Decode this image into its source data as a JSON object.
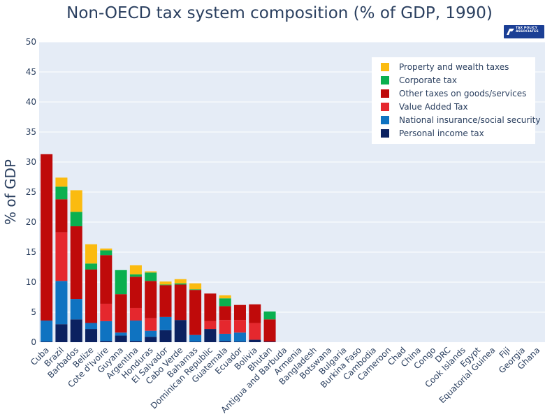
{
  "chart_data": {
    "type": "bar",
    "stacked": true,
    "title": "Non-OECD tax system composition (% of GDP, 1990)",
    "ylabel": "% of GDP",
    "xlabel": "",
    "ylim": [
      0,
      50
    ],
    "yticks": [
      0,
      5,
      10,
      15,
      20,
      25,
      30,
      35,
      40,
      45,
      50
    ],
    "grid": true,
    "legend_position": "top-right",
    "categories": [
      "Cuba",
      "Brazil",
      "Barbados",
      "Belize",
      "Cote d'Ivoire",
      "Guyana",
      "Argentina",
      "Honduras",
      "El Salvador",
      "Cabo Verde",
      "Bahamas",
      "Dominican Republic",
      "Guatemala",
      "Ecuador",
      "Bolivia",
      "Bhutan",
      "Antigua and Barbuda",
      "Armenia",
      "Bangladesh",
      "Botswana",
      "Bulgaria",
      "Burkina Faso",
      "Cambodia",
      "Cameroon",
      "Chad",
      "China",
      "Congo",
      "DRC",
      "Cook Islands",
      "Egypt",
      "Equatorial Guinea",
      "Fiji",
      "Georgia",
      "Ghana"
    ],
    "series": [
      {
        "name": "Personal income tax",
        "color": "#0b2160",
        "values": [
          0.1,
          3.0,
          3.8,
          2.2,
          0.2,
          1.1,
          0.2,
          0.9,
          2.0,
          3.7,
          0.1,
          2.2,
          0.2,
          0.1,
          0.4,
          0.1,
          0,
          0,
          0,
          0,
          0,
          0,
          0,
          0,
          0,
          0,
          0,
          0,
          0,
          0,
          0,
          0,
          0,
          0
        ]
      },
      {
        "name": "National insurance/social security",
        "color": "#0f73c1",
        "values": [
          3.5,
          7.2,
          3.4,
          1.0,
          3.3,
          0.5,
          3.4,
          1.0,
          2.2,
          0,
          1.1,
          0,
          1.2,
          1.5,
          0,
          0,
          0,
          0,
          0,
          0,
          0,
          0,
          0,
          0,
          0,
          0,
          0,
          0,
          0,
          0,
          0,
          0,
          0,
          0
        ]
      },
      {
        "name": "Value Added Tax",
        "color": "#e5282e",
        "values": [
          0,
          8.1,
          0,
          0,
          2.9,
          0,
          2.1,
          2.1,
          0,
          0,
          0,
          1.3,
          2.3,
          2.1,
          2.8,
          0,
          0,
          0,
          0,
          0,
          0,
          0,
          0,
          0,
          0,
          0,
          0,
          0,
          0,
          0,
          0,
          0,
          0,
          0
        ]
      },
      {
        "name": "Other taxes on goods/services",
        "color": "#bf0a0a",
        "values": [
          27.7,
          5.5,
          12.1,
          8.9,
          8.1,
          6.4,
          5.2,
          6.2,
          5.3,
          5.9,
          7.5,
          4.6,
          2.3,
          2.5,
          3.1,
          3.7,
          0,
          0,
          0,
          0,
          0,
          0,
          0,
          0,
          0,
          0,
          0,
          0,
          0,
          0,
          0,
          0,
          0,
          0
        ]
      },
      {
        "name": "Corporate tax",
        "color": "#0ab04f",
        "values": [
          0,
          2.1,
          2.4,
          1.0,
          0.8,
          4.0,
          0.4,
          1.4,
          0.1,
          0.2,
          0.1,
          0,
          1.3,
          0,
          0,
          1.3,
          0,
          0,
          0,
          0,
          0,
          0,
          0,
          0,
          0,
          0,
          0,
          0,
          0,
          0,
          0,
          0,
          0,
          0
        ]
      },
      {
        "name": "Property and wealth taxes",
        "color": "#fbbb10",
        "values": [
          0,
          1.5,
          3.6,
          3.2,
          0.3,
          0,
          1.5,
          0.2,
          0.5,
          0.7,
          1.0,
          0,
          0.5,
          0,
          0,
          0,
          0,
          0,
          0,
          0,
          0,
          0,
          0,
          0,
          0,
          0,
          0,
          0,
          0,
          0,
          0,
          0,
          0,
          0
        ]
      }
    ],
    "legend_order": [
      "Property and wealth taxes",
      "Corporate tax",
      "Other taxes on goods/services",
      "Value Added Tax",
      "National insurance/social security",
      "Personal income tax"
    ]
  },
  "logo": {
    "text": "TAX POLICY ASSOCIATES"
  }
}
